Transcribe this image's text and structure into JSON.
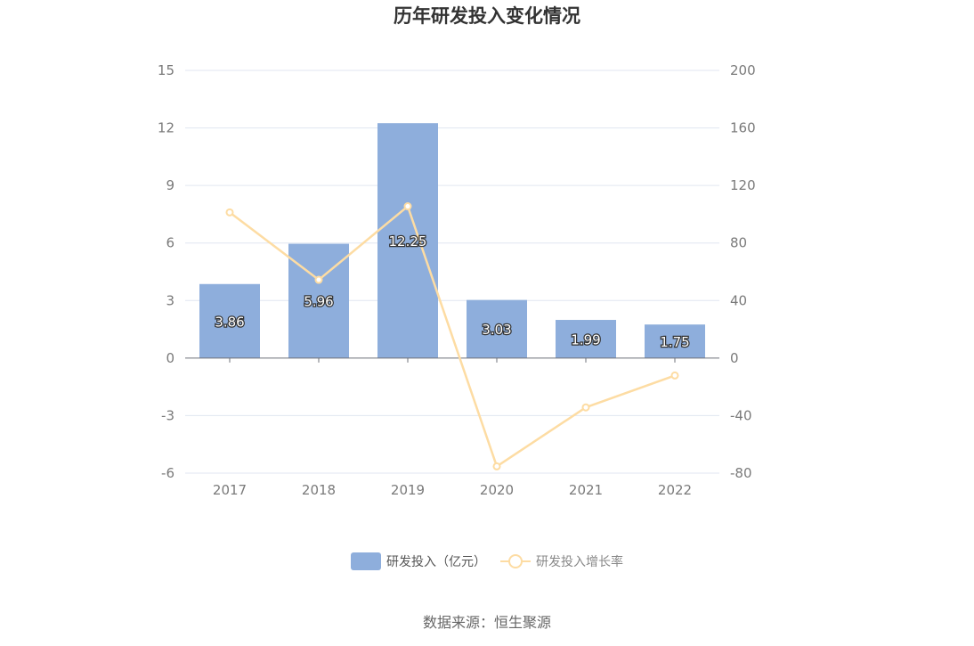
{
  "chart_data": {
    "type": "bar",
    "title": "历年研发投入变化情况",
    "categories": [
      "2017",
      "2018",
      "2019",
      "2020",
      "2021",
      "2022"
    ],
    "series": [
      {
        "name": "研发投入（亿元）",
        "type": "bar",
        "axis": "left",
        "values": [
          3.86,
          5.96,
          12.25,
          3.03,
          1.99,
          1.75
        ],
        "color": "#8eaedc"
      },
      {
        "name": "研发投入增长率",
        "type": "line",
        "axis": "right",
        "values": [
          101.3,
          54.4,
          105.5,
          -75.3,
          -34.3,
          -12.1
        ],
        "color": "#fddca3"
      }
    ],
    "y_left": {
      "min": -6,
      "max": 15,
      "ticks": [
        "15",
        "12",
        "9",
        "6",
        "3",
        "0",
        "-3",
        "-6"
      ]
    },
    "y_right": {
      "min": -80,
      "max": 200,
      "ticks": [
        "200",
        "160",
        "120",
        "80",
        "40",
        "0",
        "-40",
        "-80"
      ]
    },
    "grid": true,
    "legend_position": "bottom"
  },
  "legend": {
    "bar_label": "研发投入（亿元）",
    "line_label": "研发投入增长率"
  },
  "source": "数据来源：恒生聚源"
}
